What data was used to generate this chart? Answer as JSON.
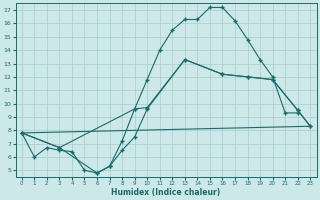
{
  "xlabel": "Humidex (Indice chaleur)",
  "bg_color": "#cce8e8",
  "line_color": "#1a6b6b",
  "grid_color": "#aacccc",
  "series": [
    {
      "x": [
        0,
        1,
        2,
        3,
        4,
        5,
        6,
        7,
        8,
        9,
        10,
        11,
        12,
        13,
        14,
        15,
        16,
        17,
        18,
        19,
        20,
        21,
        22
      ],
      "y": [
        7.8,
        6.0,
        6.7,
        6.5,
        6.4,
        5.0,
        4.8,
        5.3,
        7.2,
        9.6,
        11.8,
        14.0,
        15.5,
        16.3,
        16.3,
        17.2,
        17.2,
        16.2,
        14.8,
        13.3,
        12.0,
        9.3,
        9.3
      ],
      "marker": true
    },
    {
      "x": [
        0,
        3,
        9,
        10,
        13,
        16,
        18,
        20,
        22,
        23
      ],
      "y": [
        7.8,
        6.7,
        9.6,
        9.7,
        13.3,
        12.2,
        12.0,
        11.8,
        9.5,
        8.3
      ],
      "marker": true
    },
    {
      "x": [
        0,
        23
      ],
      "y": [
        7.8,
        8.3
      ],
      "marker": false
    },
    {
      "x": [
        0,
        3,
        6,
        7,
        8,
        9,
        10,
        13,
        16,
        18,
        20,
        22,
        23
      ],
      "y": [
        7.8,
        6.7,
        4.8,
        5.3,
        6.5,
        7.5,
        9.6,
        13.3,
        12.2,
        12.0,
        11.8,
        9.5,
        8.3
      ],
      "marker": true
    }
  ],
  "xlim": [
    -0.5,
    23.5
  ],
  "ylim": [
    4.5,
    17.5
  ],
  "yticks": [
    5,
    6,
    7,
    8,
    9,
    10,
    11,
    12,
    13,
    14,
    15,
    16,
    17
  ],
  "xticks": [
    0,
    1,
    2,
    3,
    4,
    5,
    6,
    7,
    8,
    9,
    10,
    11,
    12,
    13,
    14,
    15,
    16,
    17,
    18,
    19,
    20,
    21,
    22,
    23
  ]
}
